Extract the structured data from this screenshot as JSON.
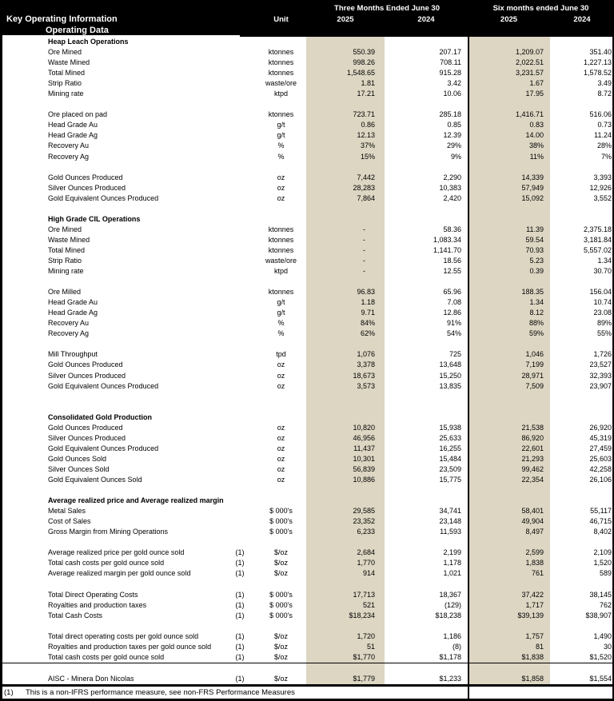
{
  "header": {
    "title": "Key Operating Information",
    "subtitle": "Operating Data",
    "unit_label": "Unit",
    "group_3m": "Three Months Ended June 30",
    "group_6m": "Six months ended June 30",
    "year_3m_a": "2025",
    "year_3m_b": "2024",
    "year_6m_a": "2025",
    "year_6m_b": "2024"
  },
  "colors": {
    "band": "#000000",
    "highlight_column": "#ddd6c3",
    "body_background": "#ffffff"
  },
  "rows": [
    {
      "type": "section",
      "label": "Heap Leach Operations"
    },
    {
      "type": "data",
      "label": "Ore Mined",
      "unit": "ktonnes",
      "values": [
        "550.39",
        "207.17",
        "1,209.07",
        "351.40"
      ]
    },
    {
      "type": "data",
      "label": "Waste Mined",
      "unit": "ktonnes",
      "values": [
        "998.26",
        "708.11",
        "2,022.51",
        "1,227.13"
      ]
    },
    {
      "type": "data",
      "label": "Total Mined",
      "unit": "ktonnes",
      "values": [
        "1,548.65",
        "915.28",
        "3,231.57",
        "1,578.52"
      ]
    },
    {
      "type": "data",
      "label": "Strip Ratio",
      "unit": "waste/ore",
      "values": [
        "1.81",
        "3.42",
        "1.67",
        "3.49"
      ]
    },
    {
      "type": "data",
      "label": "Mining rate",
      "unit": "ktpd",
      "values": [
        "17.21",
        "10.06",
        "17.95",
        "8.72"
      ]
    },
    {
      "type": "blank"
    },
    {
      "type": "data",
      "label": "Ore placed on pad",
      "unit": "ktonnes",
      "values": [
        "723.71",
        "285.18",
        "1,416.71",
        "516.06"
      ]
    },
    {
      "type": "data",
      "label": "Head Grade Au",
      "unit": "g/t",
      "values": [
        "0.86",
        "0.85",
        "0.83",
        "0.73"
      ]
    },
    {
      "type": "data",
      "label": "Head Grade Ag",
      "unit": "g/t",
      "values": [
        "12.13",
        "12.39",
        "14.00",
        "11.24"
      ]
    },
    {
      "type": "data",
      "label": "Recovery Au",
      "unit": "%",
      "values": [
        "37%",
        "29%",
        "38%",
        "28%"
      ]
    },
    {
      "type": "data",
      "label": "Recovery Ag",
      "unit": "%",
      "values": [
        "15%",
        "9%",
        "11%",
        "7%"
      ]
    },
    {
      "type": "blank"
    },
    {
      "type": "data",
      "label": "Gold Ounces Produced",
      "unit": "oz",
      "values": [
        "7,442",
        "2,290",
        "14,339",
        "3,393"
      ]
    },
    {
      "type": "data",
      "label": "Silver Ounces Produced",
      "unit": "oz",
      "values": [
        "28,283",
        "10,383",
        "57,949",
        "12,926"
      ]
    },
    {
      "type": "data",
      "label": "Gold Equivalent Ounces Produced",
      "unit": "oz",
      "values": [
        "7,864",
        "2,420",
        "15,092",
        "3,552"
      ]
    },
    {
      "type": "blank"
    },
    {
      "type": "section",
      "label": "High Grade CIL Operations"
    },
    {
      "type": "data",
      "label": "Ore Mined",
      "unit": "ktonnes",
      "values": [
        "-",
        "58.36",
        "11.39",
        "2,375.18"
      ]
    },
    {
      "type": "data",
      "label": "Waste Mined",
      "unit": "ktonnes",
      "values": [
        "-",
        "1,083.34",
        "59.54",
        "3,181.84"
      ]
    },
    {
      "type": "data",
      "label": "Total Mined",
      "unit": "ktonnes",
      "values": [
        "-",
        "1,141.70",
        "70.93",
        "5,557.02"
      ]
    },
    {
      "type": "data",
      "label": "Strip Ratio",
      "unit": "waste/ore",
      "values": [
        "-",
        "18.56",
        "5.23",
        "1.34"
      ]
    },
    {
      "type": "data",
      "label": "Mining rate",
      "unit": "ktpd",
      "values": [
        "-",
        "12.55",
        "0.39",
        "30.70"
      ]
    },
    {
      "type": "blank"
    },
    {
      "type": "data",
      "label": "Ore Milled",
      "unit": "ktonnes",
      "values": [
        "96.83",
        "65.96",
        "188.35",
        "156.04"
      ]
    },
    {
      "type": "data",
      "label": "Head Grade Au",
      "unit": "g/t",
      "values": [
        "1.18",
        "7.08",
        "1.34",
        "10.74"
      ]
    },
    {
      "type": "data",
      "label": "Head Grade Ag",
      "unit": "g/t",
      "values": [
        "9.71",
        "12.86",
        "8.12",
        "23.08"
      ]
    },
    {
      "type": "data",
      "label": "Recovery Au",
      "unit": "%",
      "values": [
        "84%",
        "91%",
        "88%",
        "89%"
      ]
    },
    {
      "type": "data",
      "label": "Recovery Ag",
      "unit": "%",
      "values": [
        "62%",
        "54%",
        "59%",
        "55%"
      ]
    },
    {
      "type": "blank"
    },
    {
      "type": "data",
      "label": "Mill Throughput",
      "unit": "tpd",
      "values": [
        "1,076",
        "725",
        "1,046",
        "1,726"
      ]
    },
    {
      "type": "data",
      "label": "Gold Ounces Produced",
      "unit": "oz",
      "values": [
        "3,378",
        "13,648",
        "7,199",
        "23,527"
      ]
    },
    {
      "type": "data",
      "label": "Silver Ounces Produced",
      "unit": "oz",
      "values": [
        "18,673",
        "15,250",
        "28,971",
        "32,393"
      ]
    },
    {
      "type": "data",
      "label": "Gold Equivalent Ounces Produced",
      "unit": "oz",
      "values": [
        "3,573",
        "13,835",
        "7,509",
        "23,907"
      ]
    },
    {
      "type": "blank"
    },
    {
      "type": "blank"
    },
    {
      "type": "section",
      "label": "Consolidated Gold Production"
    },
    {
      "type": "data",
      "label": "Gold Ounces Produced",
      "unit": "oz",
      "values": [
        "10,820",
        "15,938",
        "21,538",
        "26,920"
      ]
    },
    {
      "type": "data",
      "label": "Silver Ounces Produced",
      "unit": "oz",
      "values": [
        "46,956",
        "25,633",
        "86,920",
        "45,319"
      ]
    },
    {
      "type": "data",
      "label": "Gold Equivalent Ounces Produced",
      "unit": "oz",
      "values": [
        "11,437",
        "16,255",
        "22,601",
        "27,459"
      ]
    },
    {
      "type": "data",
      "label": "Gold Ounces Sold",
      "unit": "oz",
      "values": [
        "10,301",
        "15,484",
        "21,293",
        "25,603"
      ]
    },
    {
      "type": "data",
      "label": "Silver Ounces Sold",
      "unit": "oz",
      "values": [
        "56,839",
        "23,509",
        "99,462",
        "42,258"
      ]
    },
    {
      "type": "data",
      "label": "Gold Equivalent Ounces Sold",
      "unit": "oz",
      "values": [
        "10,886",
        "15,775",
        "22,354",
        "26,106"
      ]
    },
    {
      "type": "blank"
    },
    {
      "type": "section",
      "label": "Average realized price and Average realized margin"
    },
    {
      "type": "data",
      "label": "Metal Sales",
      "unit": "$ 000's",
      "values": [
        "29,585",
        "34,741",
        "58,401",
        "55,117"
      ]
    },
    {
      "type": "data",
      "label": "Cost of Sales",
      "unit": "$ 000's",
      "values": [
        "23,352",
        "23,148",
        "49,904",
        "46,715"
      ]
    },
    {
      "type": "data",
      "label": "Gross Margin from Mining Operations",
      "unit": "$ 000's",
      "values": [
        "6,233",
        "11,593",
        "8,497",
        "8,402"
      ]
    },
    {
      "type": "blank"
    },
    {
      "type": "data",
      "label": "Average realized price per gold ounce sold",
      "note": "(1)",
      "unit": "$/oz",
      "values": [
        "2,684",
        "2,199",
        "2,599",
        "2,109"
      ]
    },
    {
      "type": "data",
      "label": "Total cash costs per gold ounce sold",
      "note": "(1)",
      "unit": "$/oz",
      "values": [
        "1,770",
        "1,178",
        "1,838",
        "1,520"
      ]
    },
    {
      "type": "data",
      "label": "Average realized margin per gold ounce sold",
      "note": "(1)",
      "unit": "$/oz",
      "values": [
        "914",
        "1,021",
        "761",
        "589"
      ]
    },
    {
      "type": "blank"
    },
    {
      "type": "data",
      "label": "Total Direct Operating Costs",
      "note": "(1)",
      "unit": "$ 000's",
      "values": [
        "17,713",
        "18,367",
        "37,422",
        "38,145"
      ]
    },
    {
      "type": "data",
      "label": "Royalties and production taxes",
      "note": "(1)",
      "unit": "$ 000's",
      "values": [
        "521",
        "(129)",
        "1,717",
        "762"
      ]
    },
    {
      "type": "data",
      "label": "Total Cash Costs",
      "note": "(1)",
      "unit": "$ 000's",
      "values": [
        "$18,234",
        "$18,238",
        "$39,139",
        "$38,907"
      ]
    },
    {
      "type": "blank"
    },
    {
      "type": "data",
      "label": "Total direct operating costs per gold ounce sold",
      "note": "(1)",
      "unit": "$/oz",
      "values": [
        "1,720",
        "1,186",
        "1,757",
        "1,490"
      ]
    },
    {
      "type": "data",
      "label": "Royalties and production taxes per gold ounce sold",
      "note": "(1)",
      "unit": "$/oz",
      "values": [
        "51",
        "(8)",
        "81",
        "30"
      ]
    },
    {
      "type": "data",
      "label": "Total cash costs per gold ounce sold",
      "note": "(1)",
      "unit": "$/oz",
      "values": [
        "$1,770",
        "$1,178",
        "$1,838",
        "$1,520"
      ]
    },
    {
      "type": "blank",
      "rule": true
    },
    {
      "type": "data",
      "label": "AISC - Minera Don Nicolas",
      "note": "(1)",
      "unit": "$/oz",
      "values": [
        "$1,779",
        "$1,233",
        "$1,858",
        "$1,554"
      ]
    }
  ],
  "footnote": {
    "marker": "(1)",
    "text": "This is a non-IFRS performance measure, see non-FRS Performance Measures"
  }
}
